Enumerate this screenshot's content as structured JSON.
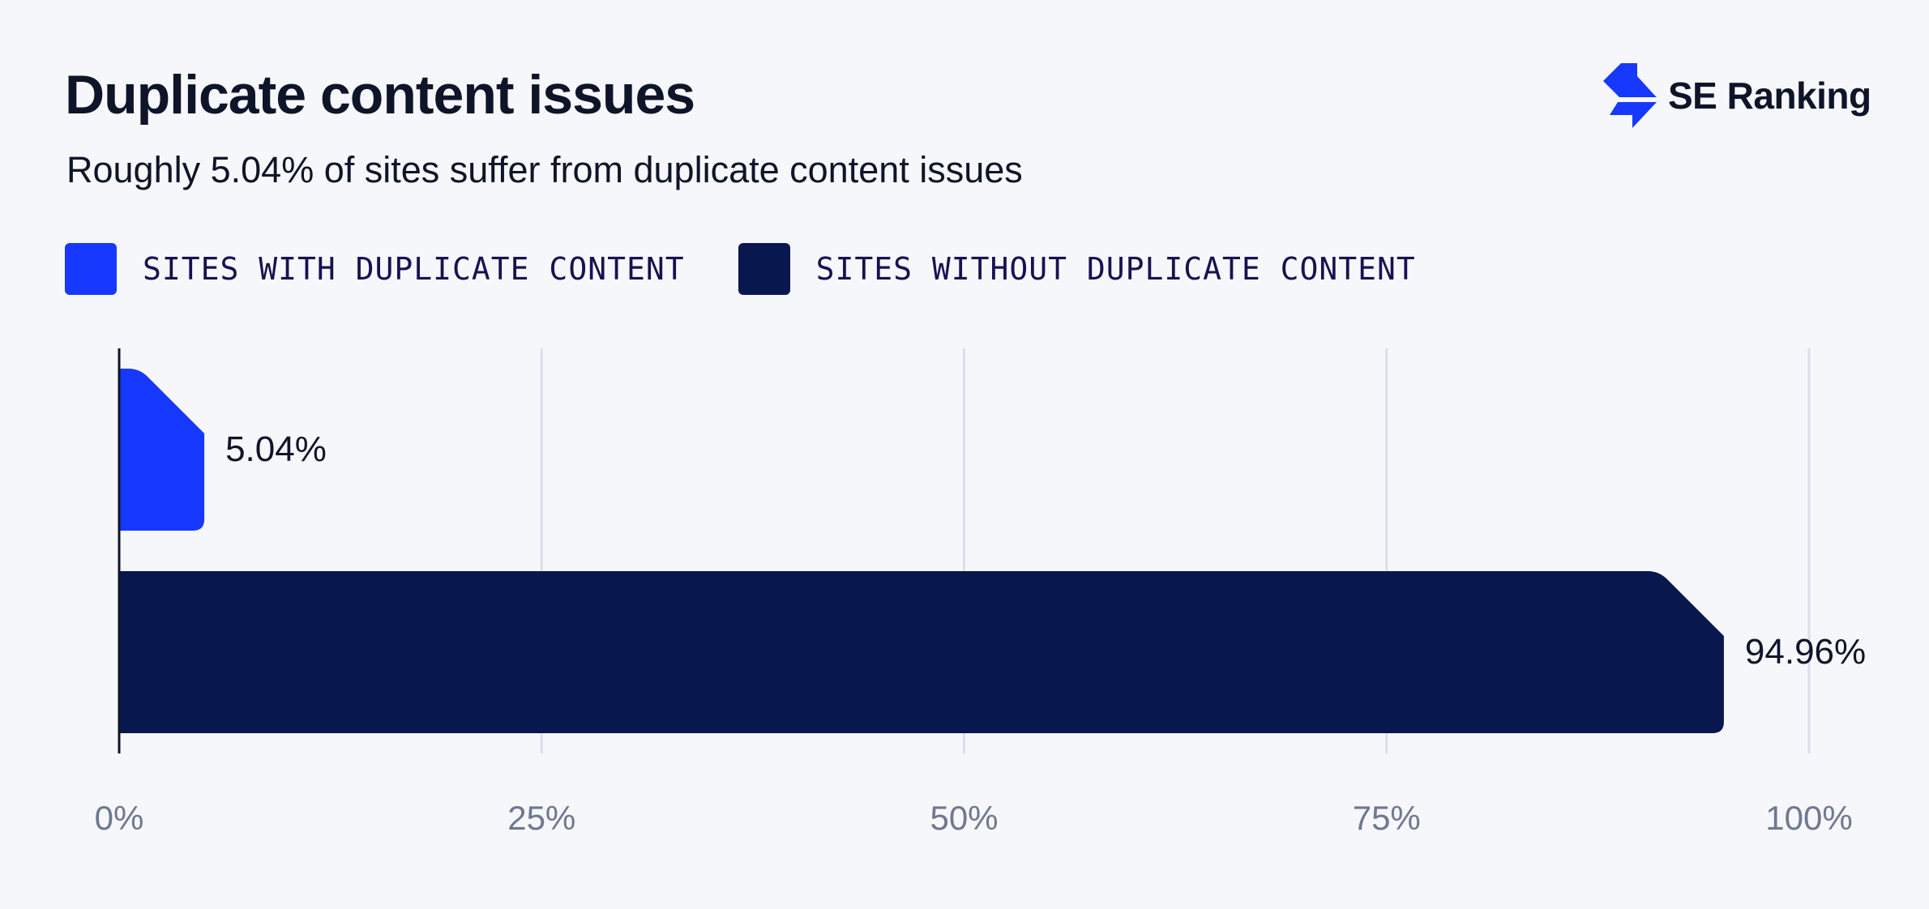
{
  "header": {
    "title": "Duplicate content issues",
    "subtitle": "Roughly 5.04% of sites suffer from duplicate content issues"
  },
  "brand": {
    "name": "SE Ranking",
    "icon": "se-ranking-logo-icon",
    "color": "#1738ff"
  },
  "legend": [
    {
      "label": "SITES WITH DUPLICATE CONTENT",
      "color": "#1738ff"
    },
    {
      "label": "SITES WITHOUT DUPLICATE CONTENT",
      "color": "#08174d"
    }
  ],
  "chart_data": {
    "type": "bar",
    "orientation": "horizontal",
    "categories": [
      "Sites with duplicate content",
      "Sites without duplicate content"
    ],
    "values": [
      5.04,
      94.96
    ],
    "value_labels": [
      "5.04%",
      "94.96%"
    ],
    "colors": [
      "#1738ff",
      "#08174d"
    ],
    "xlim": [
      0,
      100
    ],
    "xticks": [
      0,
      25,
      50,
      75,
      100
    ],
    "xtick_labels": [
      "0%",
      "25%",
      "50%",
      "75%",
      "100%"
    ],
    "grid": true,
    "legend_position": "top-left"
  }
}
